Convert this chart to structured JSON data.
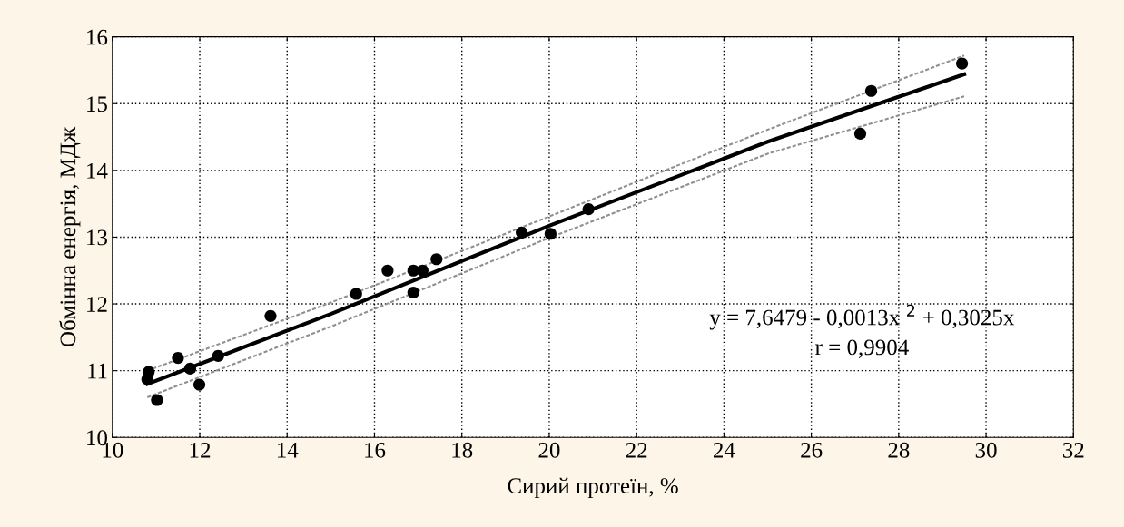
{
  "chart_data": {
    "type": "scatter",
    "xlabel": "Сирий протеїн, %",
    "ylabel": "Обмінна енергія, МДж",
    "x": [
      10.83,
      10.8,
      11.02,
      11.5,
      11.78,
      11.99,
      12.42,
      13.62,
      15.58,
      16.3,
      16.89,
      17.1,
      16.89,
      17.42,
      19.37,
      20.03,
      20.9,
      27.12,
      27.37,
      29.45
    ],
    "series": [
      {
        "color": "#000000",
        "values": [
          10.98,
          10.87,
          10.56,
          11.19,
          11.03,
          10.79,
          11.22,
          11.82,
          12.15,
          12.5,
          12.5,
          12.5,
          12.17,
          12.67,
          13.07,
          13.05,
          13.42,
          14.55,
          15.19,
          15.6
        ]
      },
      {
        "type": "line",
        "color": "#000000",
        "marker": "none",
        "line_style": "solid",
        "x": [
          10.8,
          15,
          20,
          25,
          29.5
        ],
        "values": [
          10.8,
          11.85,
          13.17,
          14.43,
          15.44
        ]
      },
      {
        "type": "line",
        "color": "#909090",
        "marker": "none",
        "line_style": "dotted",
        "x": [
          10.8,
          15,
          20,
          25,
          29.5
        ],
        "values": [
          11.0,
          12.02,
          13.31,
          14.61,
          15.72
        ]
      },
      {
        "type": "line",
        "color": "#909090",
        "marker": "none",
        "line_style": "dotted",
        "x": [
          10.8,
          15,
          20,
          25,
          29.5
        ],
        "values": [
          10.6,
          11.66,
          12.99,
          14.25,
          15.11
        ]
      }
    ],
    "annotations": [
      "y = 7,6479 - 0,0013x $^{2}$ + 0,3025x",
      "r = 0,9904"
    ],
    "xlim": [
      10,
      32
    ],
    "xticks": [
      10,
      12,
      14,
      16,
      18,
      20,
      22,
      24,
      26,
      28,
      30,
      32
    ],
    "ylim": [
      10,
      16
    ],
    "yticks": [
      10,
      11,
      12,
      13,
      14,
      15,
      16
    ],
    "grid": true,
    "marker": "circle"
  }
}
